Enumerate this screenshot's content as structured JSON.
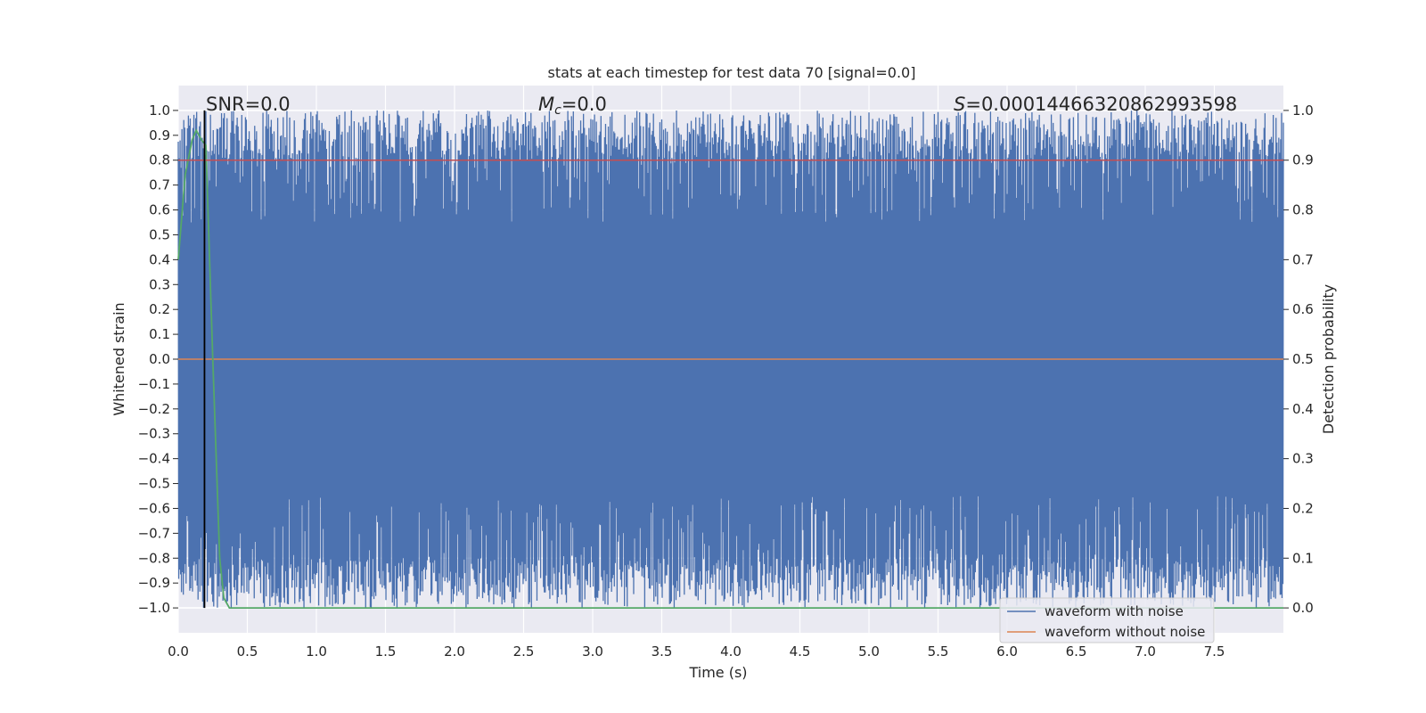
{
  "chart_data": {
    "type": "line",
    "title": "stats at each timestep for test data 70 [signal=0.0]",
    "xlabel": "Time (s)",
    "ylabel": "Whitened strain",
    "ylabel_right": "Detection probability",
    "xlim": [
      0.0,
      8.0
    ],
    "ylim": [
      -1.1,
      1.1
    ],
    "ylim_right": [
      -0.05,
      1.05
    ],
    "x_ticks": [
      "0.0",
      "0.5",
      "1.0",
      "1.5",
      "2.0",
      "2.5",
      "3.0",
      "3.5",
      "4.0",
      "4.5",
      "5.0",
      "5.5",
      "6.0",
      "6.5",
      "7.0",
      "7.5"
    ],
    "y_ticks": [
      "1.0",
      "0.9",
      "0.8",
      "0.7",
      "0.6",
      "0.5",
      "0.4",
      "0.3",
      "0.2",
      "0.1",
      "0.0",
      "−0.1",
      "−0.2",
      "−0.3",
      "−0.4",
      "−0.5",
      "−0.6",
      "−0.7",
      "−0.8",
      "−0.9",
      "−1.0"
    ],
    "y_ticks_right": [
      "1.0",
      "0.9",
      "0.8",
      "0.7",
      "0.6",
      "0.5",
      "0.4",
      "0.3",
      "0.2",
      "0.1",
      "0.0"
    ],
    "grid": true,
    "legend_position": "lower right",
    "series": [
      {
        "name": "waveform with noise",
        "axis": "left",
        "color": "#4c72b0",
        "description": "dense noise filling approximately -0.95 to 0.95, clipped to [-1, 1]",
        "x_range": [
          0.0,
          8.0
        ],
        "y_envelope": [
          -1.0,
          1.0
        ]
      },
      {
        "name": "waveform without noise",
        "axis": "left",
        "color": "#dd8452",
        "x": [
          0.0,
          8.0
        ],
        "y": [
          0.0,
          0.0
        ]
      },
      {
        "axis": "right",
        "color": "#55a868",
        "x": [
          0.0,
          0.05,
          0.1,
          0.13,
          0.17,
          0.2,
          0.25,
          0.3,
          0.33,
          0.37,
          0.4,
          8.0
        ],
        "y": [
          0.7,
          0.87,
          0.94,
          0.96,
          0.94,
          0.93,
          0.5,
          0.1,
          0.02,
          0.0,
          0.0,
          0.0
        ]
      },
      {
        "axis": "right",
        "color": "#c44e52",
        "x": [
          0.0,
          8.0
        ],
        "y": [
          0.9,
          0.9
        ]
      }
    ],
    "vline": {
      "x": 0.19,
      "color": "#000000"
    },
    "annotations": {
      "snr": "SNR=0.0",
      "mc_symbol": "M",
      "mc_sub": "c",
      "mc_value": "=0.0",
      "s_symbol": "S",
      "s_value": "=0.00014466320862993598"
    }
  }
}
